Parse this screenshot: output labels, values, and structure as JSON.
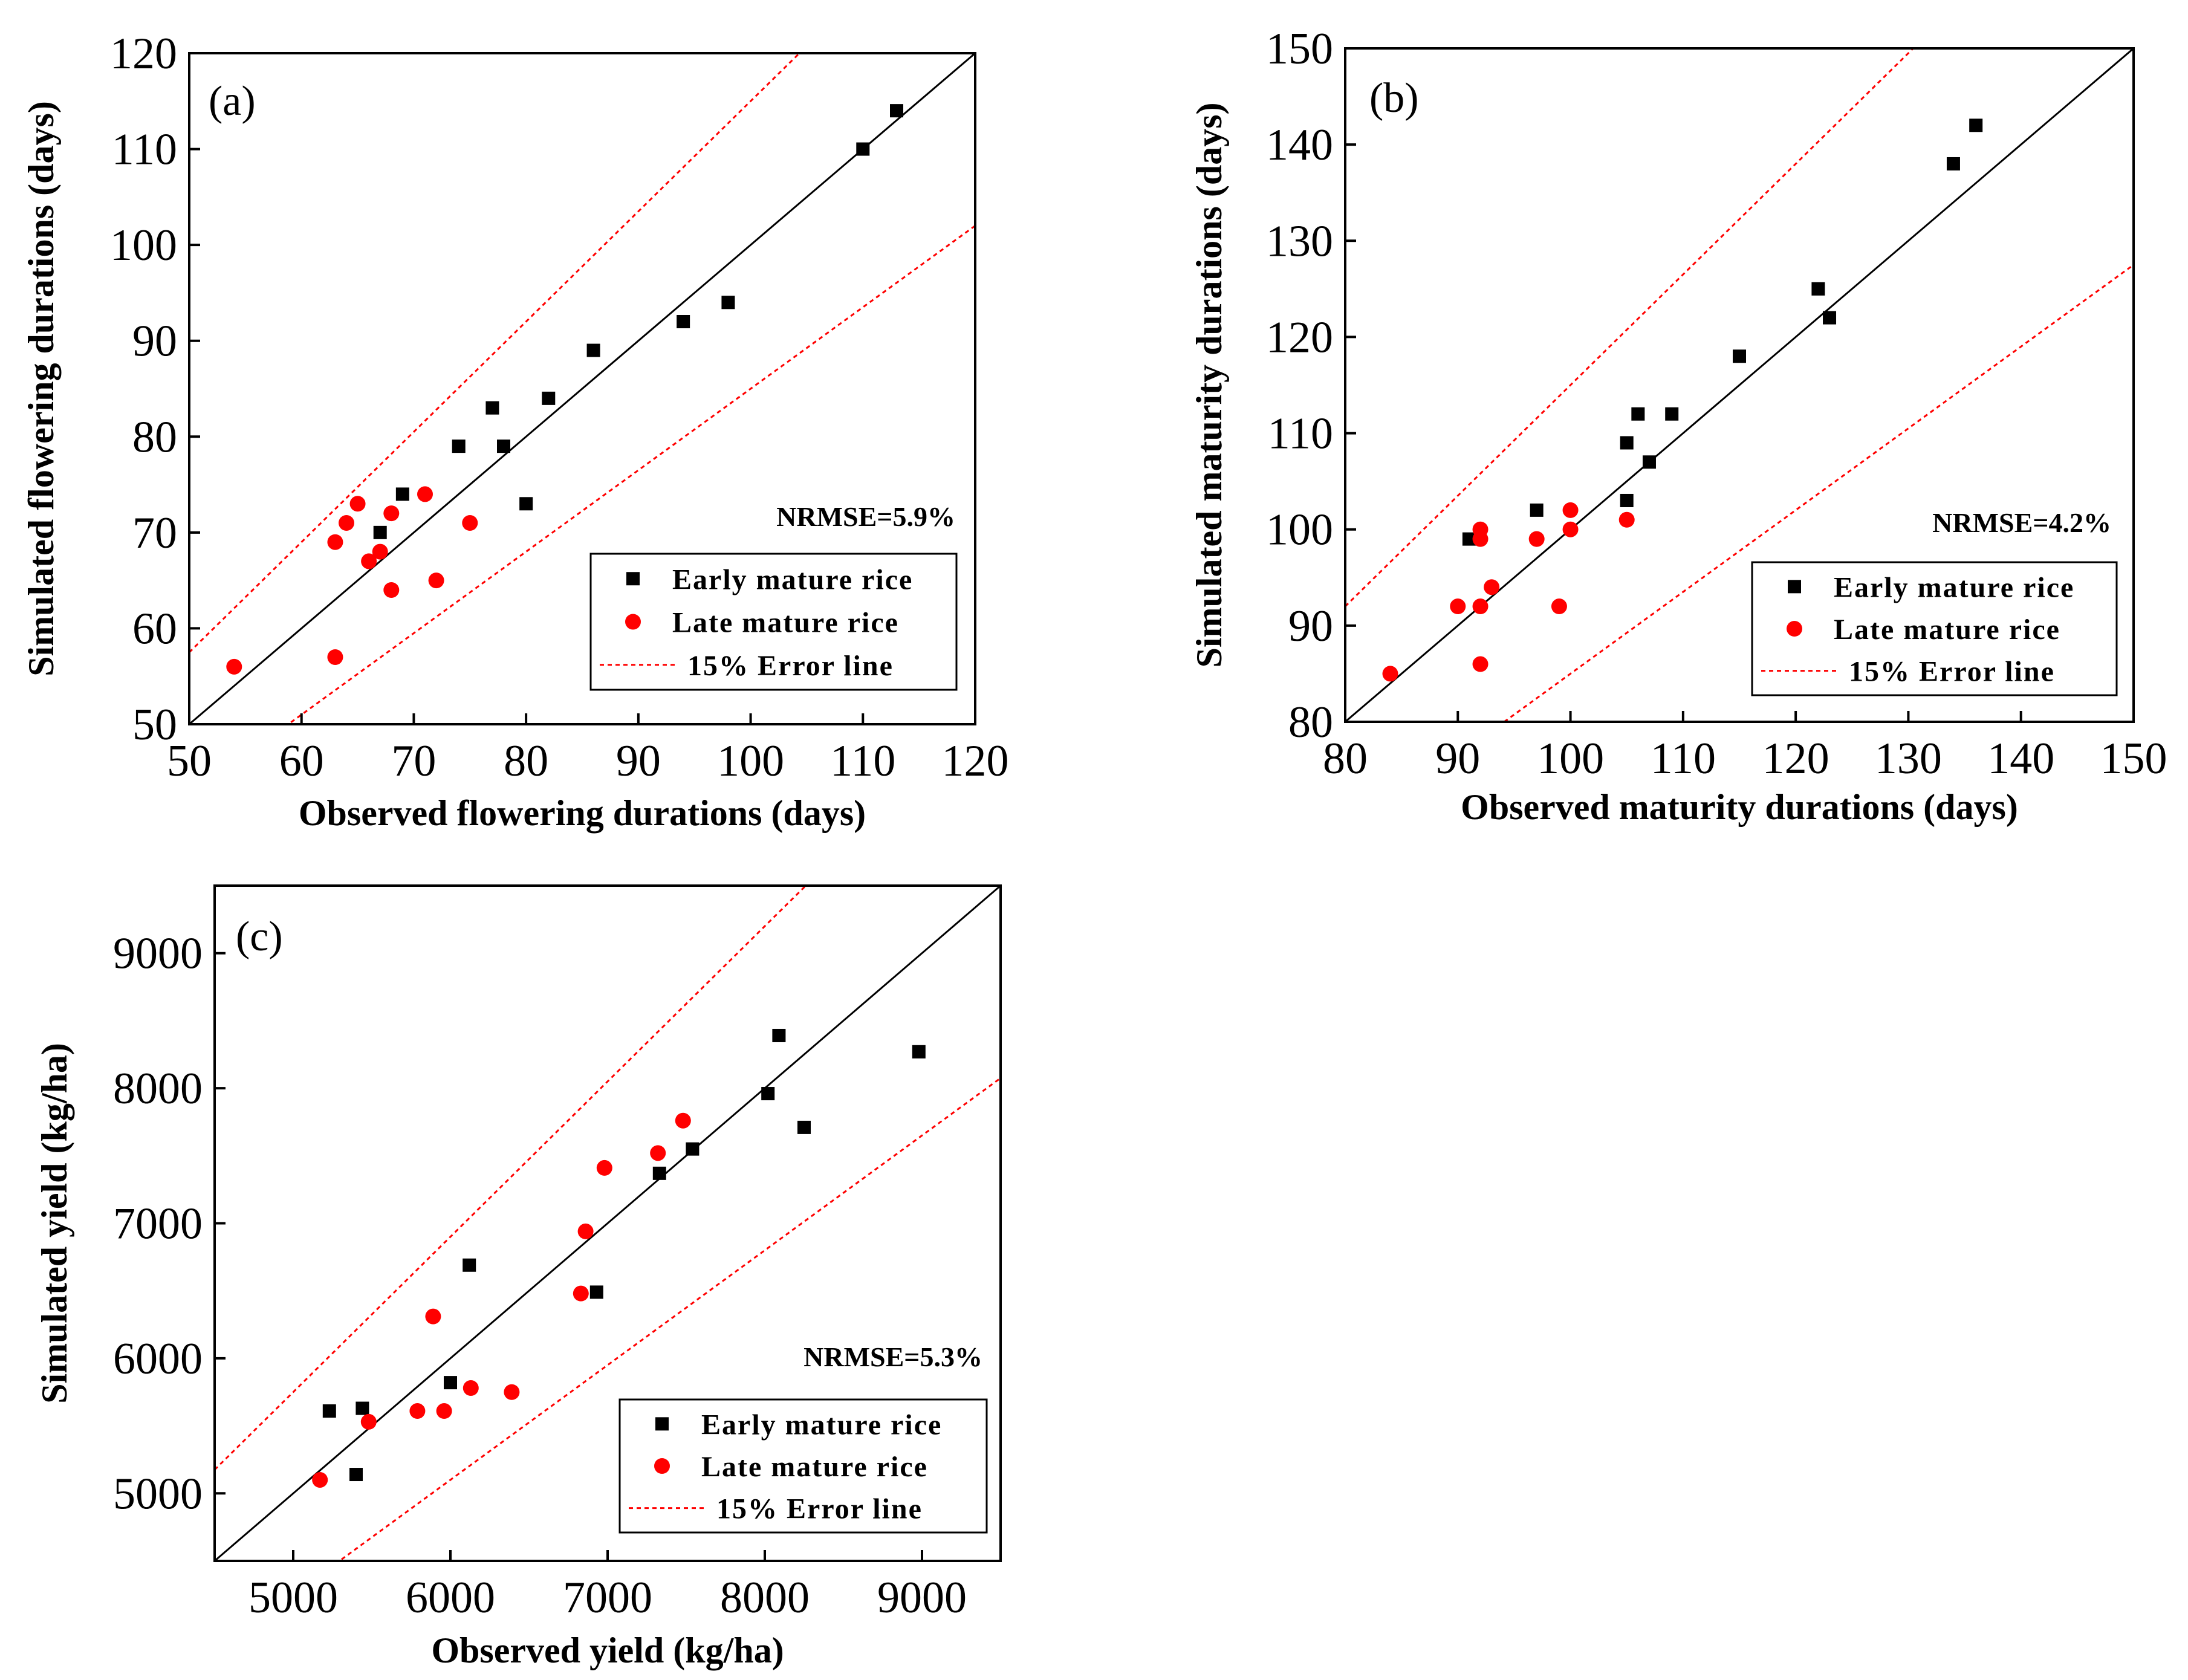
{
  "chart_data": [
    {
      "type": "scatter",
      "panel_label": "(a)",
      "xlabel": "Observed flowering durations (days)",
      "ylabel": "Simulated flowering durations (days)",
      "xlim": [
        50,
        120
      ],
      "ylim": [
        50,
        120
      ],
      "xticks": [
        50,
        60,
        70,
        80,
        90,
        100,
        110,
        120
      ],
      "yticks": [
        50,
        60,
        70,
        80,
        90,
        100,
        110,
        120
      ],
      "nrmse": "NRMSE=5.9%",
      "legend": {
        "early": "Early mature rice",
        "late": "Late mature rice",
        "error": "15% Error line"
      },
      "error_fraction": 0.15,
      "series": [
        {
          "name": "Early mature rice",
          "marker": "square",
          "color": "#000000",
          "points": [
            [
              67,
              70
            ],
            [
              69,
              74
            ],
            [
              74,
              79
            ],
            [
              77,
              83
            ],
            [
              78,
              79
            ],
            [
              80,
              73
            ],
            [
              82,
              84
            ],
            [
              86,
              89
            ],
            [
              94,
              92
            ],
            [
              98,
              94
            ],
            [
              110,
              110
            ],
            [
              113,
              114
            ]
          ]
        },
        {
          "name": "Late mature rice",
          "marker": "circle",
          "color": "#ff0000",
          "points": [
            [
              54,
              56
            ],
            [
              63,
              57
            ],
            [
              63,
              69
            ],
            [
              64,
              71
            ],
            [
              65,
              73
            ],
            [
              66,
              67
            ],
            [
              67,
              68
            ],
            [
              68,
              72
            ],
            [
              68,
              64
            ],
            [
              71,
              74
            ],
            [
              72,
              65
            ],
            [
              75,
              71
            ]
          ]
        }
      ]
    },
    {
      "type": "scatter",
      "panel_label": "(b)",
      "xlabel": "Observed maturity durations (days)",
      "ylabel": "Simulated maturity durations (days)",
      "xlim": [
        80,
        150
      ],
      "ylim": [
        80,
        150
      ],
      "xticks": [
        80,
        90,
        100,
        110,
        120,
        130,
        140,
        150
      ],
      "yticks": [
        80,
        90,
        100,
        110,
        120,
        130,
        140,
        150
      ],
      "nrmse": "NRMSE=4.2%",
      "legend": {
        "early": "Early mature rice",
        "late": "Late mature rice",
        "error": "15% Error line"
      },
      "error_fraction": 0.15,
      "series": [
        {
          "name": "Early mature rice",
          "marker": "square",
          "color": "#000000",
          "points": [
            [
              91,
              99
            ],
            [
              97,
              102
            ],
            [
              105,
              103
            ],
            [
              105,
              109
            ],
            [
              106,
              112
            ],
            [
              107,
              107
            ],
            [
              109,
              112
            ],
            [
              115,
              118
            ],
            [
              122,
              125
            ],
            [
              123,
              122
            ],
            [
              134,
              138
            ],
            [
              136,
              142
            ]
          ]
        },
        {
          "name": "Late mature rice",
          "marker": "circle",
          "color": "#ff0000",
          "points": [
            [
              84,
              85
            ],
            [
              90,
              92
            ],
            [
              92,
              86
            ],
            [
              92,
              92
            ],
            [
              92,
              99
            ],
            [
              92,
              100
            ],
            [
              93,
              94
            ],
            [
              97,
              99
            ],
            [
              99,
              92
            ],
            [
              100,
              100
            ],
            [
              100,
              102
            ],
            [
              105,
              101
            ]
          ]
        }
      ]
    },
    {
      "type": "scatter",
      "panel_label": "(c)",
      "xlabel": "Observed yield (kg/ha)",
      "ylabel": "Simulated yield (kg/ha)",
      "xlim": [
        4500,
        9500
      ],
      "ylim": [
        4500,
        9500
      ],
      "xticks": [
        5000,
        6000,
        7000,
        8000,
        9000
      ],
      "yticks": [
        5000,
        6000,
        7000,
        8000,
        9000
      ],
      "nrmse": "NRMSE=5.3%",
      "legend": {
        "early": "Early mature rice",
        "late": "Late mature rice",
        "error": "15% Error line"
      },
      "error_fraction": 0.15,
      "series": [
        {
          "name": "Early mature rice",
          "marker": "square",
          "color": "#000000",
          "points": [
            [
              5230,
              5610
            ],
            [
              5400,
              5140
            ],
            [
              5440,
              5630
            ],
            [
              6000,
              5820
            ],
            [
              6120,
              6690
            ],
            [
              6930,
              6490
            ],
            [
              7330,
              7370
            ],
            [
              7540,
              7550
            ],
            [
              8020,
              7960
            ],
            [
              8090,
              8390
            ],
            [
              8250,
              7710
            ],
            [
              8980,
              8270
            ]
          ]
        },
        {
          "name": "Late mature rice",
          "marker": "circle",
          "color": "#ff0000",
          "points": [
            [
              5170,
              5100
            ],
            [
              5480,
              5530
            ],
            [
              5790,
              5610
            ],
            [
              5890,
              6310
            ],
            [
              5960,
              5610
            ],
            [
              6130,
              5780
            ],
            [
              6390,
              5750
            ],
            [
              6830,
              6480
            ],
            [
              6860,
              6940
            ],
            [
              6980,
              7410
            ],
            [
              7320,
              7520
            ],
            [
              7480,
              7760
            ]
          ]
        }
      ]
    }
  ]
}
